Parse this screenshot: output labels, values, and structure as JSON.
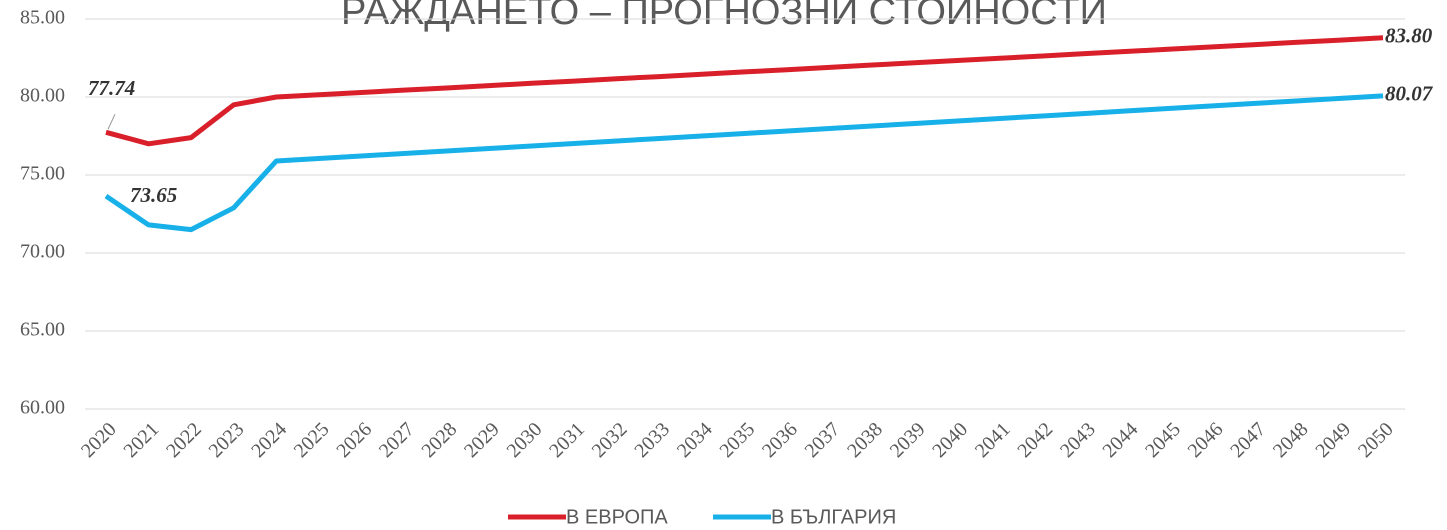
{
  "chart_data": {
    "type": "line",
    "title": "РАЖДАНЕТО – ПРОГНОЗНИ СТОЙНОСТИ",
    "categories": [
      "2020",
      "2021",
      "2022",
      "2023",
      "2024",
      "2025",
      "2026",
      "2027",
      "2028",
      "2029",
      "2030",
      "2031",
      "2032",
      "2033",
      "2034",
      "2035",
      "2036",
      "2037",
      "2038",
      "2039",
      "2040",
      "2041",
      "2042",
      "2043",
      "2044",
      "2045",
      "2046",
      "2047",
      "2048",
      "2049",
      "2050"
    ],
    "series": [
      {
        "name": "В ЕВРОПА",
        "color": "#d9202a",
        "values": [
          77.74,
          77.0,
          77.4,
          79.5,
          80.0,
          80.15,
          80.29,
          80.44,
          80.58,
          80.73,
          80.88,
          81.02,
          81.17,
          81.31,
          81.46,
          81.61,
          81.75,
          81.9,
          82.05,
          82.19,
          82.34,
          82.48,
          82.63,
          82.78,
          82.92,
          83.07,
          83.21,
          83.36,
          83.51,
          83.65,
          83.8
        ],
        "value_labels": [
          "77.74",
          null,
          null,
          null,
          null,
          null,
          null,
          null,
          null,
          null,
          null,
          null,
          null,
          null,
          null,
          null,
          null,
          null,
          null,
          null,
          null,
          null,
          null,
          null,
          null,
          null,
          null,
          null,
          null,
          null,
          "83.80"
        ]
      },
      {
        "name": "В БЪЛГАРИЯ",
        "color": "#18b0e8",
        "values": [
          73.65,
          71.8,
          71.5,
          72.9,
          75.9,
          76.06,
          76.22,
          76.38,
          76.54,
          76.7,
          76.86,
          77.02,
          77.18,
          77.34,
          77.5,
          77.66,
          77.82,
          77.98,
          78.14,
          78.3,
          78.46,
          78.62,
          78.78,
          78.94,
          79.11,
          79.27,
          79.43,
          79.59,
          79.75,
          79.91,
          80.07
        ],
        "value_labels": [
          "73.65",
          null,
          null,
          null,
          null,
          null,
          null,
          null,
          null,
          null,
          null,
          null,
          null,
          null,
          null,
          null,
          null,
          null,
          null,
          null,
          null,
          null,
          null,
          null,
          null,
          null,
          null,
          null,
          null,
          null,
          "80.07"
        ]
      }
    ],
    "ylim": [
      60,
      85
    ],
    "yticks": [
      {
        "value": 60,
        "label": "60.00"
      },
      {
        "value": 65,
        "label": "65.00"
      },
      {
        "value": 70,
        "label": "70.00"
      },
      {
        "value": 75,
        "label": "75.00"
      },
      {
        "value": 80,
        "label": "80.00"
      },
      {
        "value": 85,
        "label": "85.00"
      }
    ],
    "grid": true,
    "legend": "bottom"
  }
}
